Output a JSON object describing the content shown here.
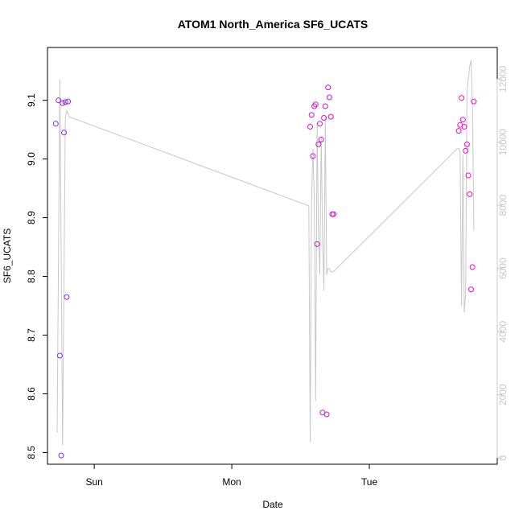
{
  "chart_data": {
    "type": "scatter",
    "title": "ATOM1 North_America SF6_UCATS",
    "xlabel": "Date",
    "ylabel": "SF6_UCATS",
    "x_ticks": [
      "Sun",
      "Mon",
      "Tue"
    ],
    "x_tick_positions_days": [
      1,
      2,
      3
    ],
    "xlim_days": [
      0.66,
      3.93
    ],
    "ylim": [
      8.48,
      9.19
    ],
    "y_ticks": [
      8.5,
      8.6,
      8.7,
      8.8,
      8.9,
      9.0,
      9.1
    ],
    "y_right_lim": [
      -200,
      13000
    ],
    "y_right_ticks": [
      0,
      2000,
      4000,
      6000,
      8000,
      10000,
      12000
    ],
    "grid": false,
    "colors": {
      "points_low": "#8a2be2",
      "points_high": "#ff00cc",
      "line": "#c8c8c8",
      "axis": "#000000",
      "right_axis": "#c8c8c8"
    },
    "series": [
      {
        "color_scale": "purple-to-magenta by time",
        "x_days": [
          0.72,
          0.74,
          0.75,
          0.76,
          0.77,
          0.78,
          0.79,
          0.8,
          0.81,
          2.57,
          2.58,
          2.59,
          2.6,
          2.61,
          2.62,
          2.63,
          2.64,
          2.65,
          2.66,
          2.67,
          2.68,
          2.69,
          2.7,
          2.71,
          2.72,
          2.73,
          2.74,
          3.65,
          3.66,
          3.67,
          3.68,
          3.69,
          3.7,
          3.71,
          3.72,
          3.73,
          3.74,
          3.75,
          3.76
        ],
        "values": [
          9.06,
          9.1,
          8.665,
          8.495,
          9.095,
          9.045,
          9.097,
          8.765,
          9.098,
          9.055,
          9.075,
          9.005,
          9.09,
          9.093,
          8.855,
          9.025,
          9.06,
          9.033,
          8.568,
          9.07,
          9.09,
          8.565,
          9.122,
          9.105,
          9.072,
          8.906,
          8.906,
          9.048,
          9.058,
          9.104,
          9.067,
          9.055,
          9.014,
          9.025,
          8.972,
          8.94,
          8.778,
          8.816,
          9.098
        ]
      }
    ],
    "secondary_line": {
      "x_days": [
        0.73,
        0.75,
        0.77,
        0.79,
        0.8,
        0.81,
        0.82,
        2.55,
        2.56,
        2.57,
        2.58,
        2.59,
        2.6,
        2.61,
        2.62,
        2.63,
        2.64,
        2.65,
        2.66,
        2.67,
        2.68,
        2.69,
        2.7,
        2.71,
        2.72,
        2.73,
        2.74,
        3.64,
        3.65,
        3.66,
        3.67,
        3.68,
        3.69,
        3.7,
        3.71,
        3.72,
        3.73,
        3.74,
        3.75,
        3.76
      ],
      "values": [
        800,
        12000,
        400,
        10800,
        11000,
        10900,
        10800,
        8000,
        8000,
        500,
        8100,
        9800,
        8200,
        1800,
        10600,
        7200,
        5800,
        10200,
        7000,
        5300,
        10800,
        5800,
        6000,
        6000,
        5900,
        5900,
        5900,
        9800,
        9800,
        9700,
        4800,
        9600,
        4600,
        5200,
        11600,
        12000,
        12400,
        12600,
        11200,
        7200
      ]
    }
  }
}
